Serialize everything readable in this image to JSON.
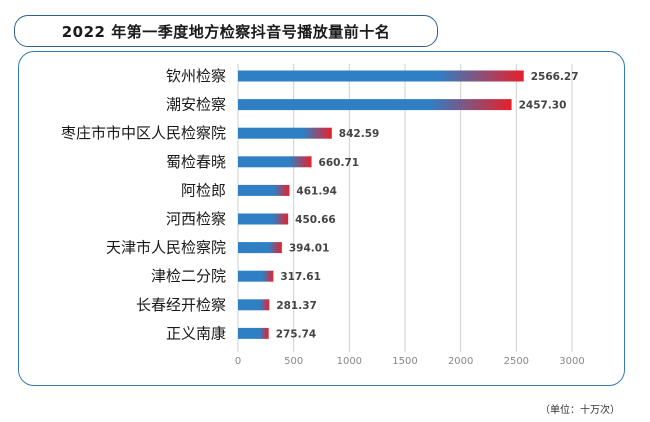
{
  "title": "2022 年第一季度地方检察抖音号播放量前十名",
  "unit": "（单位：十万次）",
  "colors": {
    "bar_start": "#2f7fc4",
    "bar_end": "#e8202a",
    "grid": "#cfcfcf",
    "frame": "#3579b0"
  },
  "chart_data": {
    "type": "bar",
    "orientation": "horizontal",
    "categories": [
      "钦州检察",
      "潮安检察",
      "枣庄市市中区人民检察院",
      "蜀检春晓",
      "阿检郎",
      "河西检察",
      "天津市人民检察院",
      "津检二分院",
      "长春经开检察",
      "正义南康"
    ],
    "values": [
      2566.27,
      2457.3,
      842.59,
      660.71,
      461.94,
      450.66,
      394.01,
      317.61,
      281.37,
      275.74
    ],
    "value_labels": [
      "2566.27",
      "2457.30",
      "842.59",
      "660.71",
      "461.94",
      "450.66",
      "394.01",
      "317.61",
      "281.37",
      "275.74"
    ],
    "xlim": [
      0,
      3000
    ],
    "xticks": [
      0,
      500,
      1000,
      1500,
      2000,
      2500,
      3000
    ],
    "grid": true
  }
}
